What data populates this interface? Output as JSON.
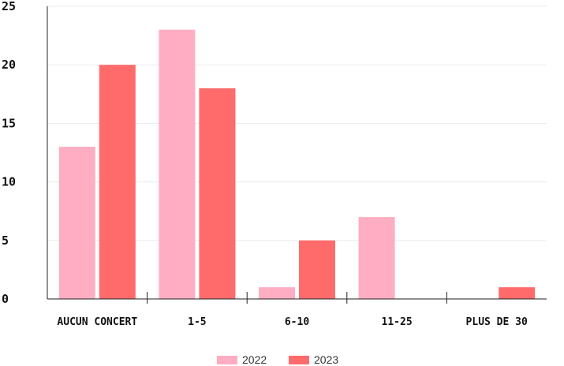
{
  "chart_data": {
    "type": "bar",
    "categories": [
      "AUCUN CONCERT",
      "1-5",
      "6-10",
      "11-25",
      "PLUS DE 30"
    ],
    "series": [
      {
        "name": "2022",
        "values": [
          13,
          23,
          1,
          7,
          0
        ],
        "color": "#FFADC2"
      },
      {
        "name": "2023",
        "values": [
          20,
          18,
          5,
          0,
          1
        ],
        "color": "#FF6B6B"
      }
    ],
    "yticks": [
      "0",
      "5",
      "10",
      "15",
      "20",
      "25"
    ],
    "ylim": [
      0,
      25
    ],
    "grid": true,
    "legend_position": "bottom"
  }
}
